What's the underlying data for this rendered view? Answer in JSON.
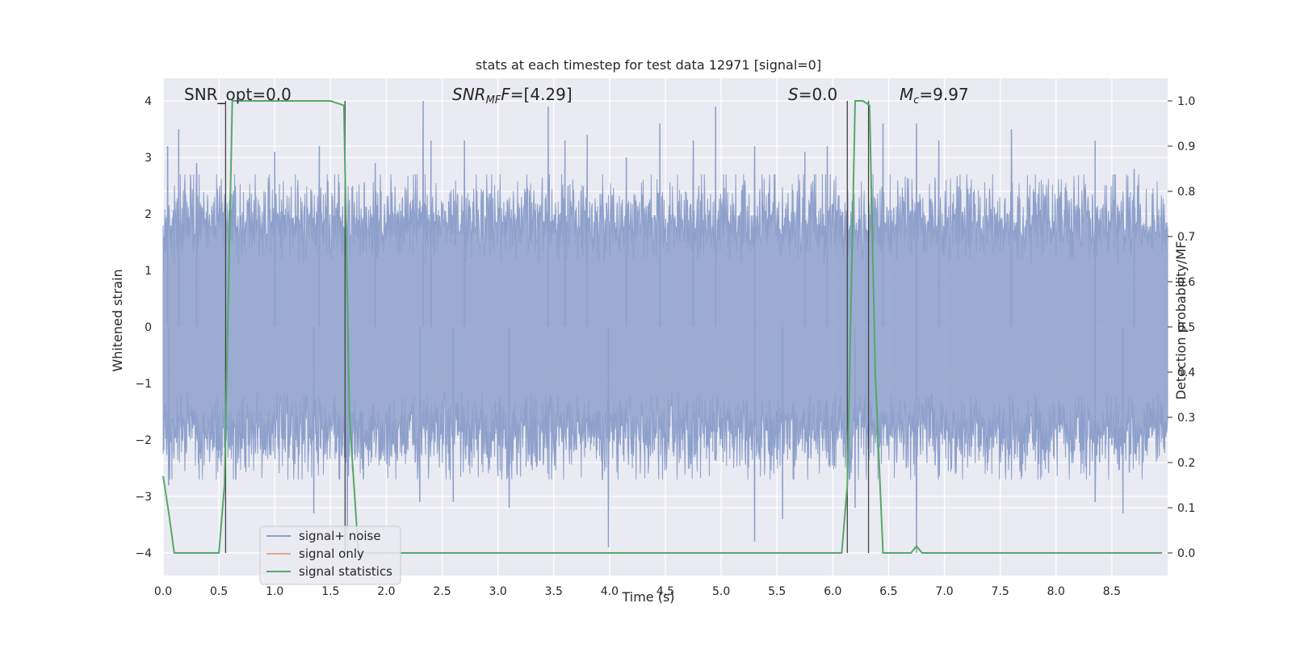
{
  "chart_data": {
    "type": "line",
    "title": "stats at each timestep for test data 12971 [signal=0]",
    "xlabel": "Time (s)",
    "ylabel_left": "Whitened strain",
    "ylabel_right": "Detection probability/MF",
    "xlim": [
      0,
      9.0
    ],
    "ylim_left": [
      -4.4,
      4.4
    ],
    "ylim_right": [
      -0.05,
      1.05
    ],
    "x_ticks": [
      0.0,
      0.5,
      1.0,
      1.5,
      2.0,
      2.5,
      3.0,
      3.5,
      4.0,
      4.5,
      5.0,
      5.5,
      6.0,
      6.5,
      7.0,
      7.5,
      8.0,
      8.5
    ],
    "x_tick_labels": [
      "0.0",
      "0.5",
      "1.0",
      "1.5",
      "2.0",
      "2.5",
      "3.0",
      "3.5",
      "4.0",
      "4.5",
      "5.0",
      "5.5",
      "6.0",
      "6.5",
      "7.0",
      "7.5",
      "8.0",
      "8.5"
    ],
    "y_left_ticks": [
      -4,
      -3,
      -2,
      -1,
      0,
      1,
      2,
      3,
      4
    ],
    "y_left_tick_labels": [
      "−4",
      "−3",
      "−2",
      "−1",
      "0",
      "1",
      "2",
      "3",
      "4"
    ],
    "y_right_ticks": [
      0.0,
      0.1,
      0.2,
      0.3,
      0.4,
      0.5,
      0.6,
      0.7,
      0.8,
      0.9,
      1.0
    ],
    "y_right_tick_labels": [
      "0.0",
      "0.1",
      "0.2",
      "0.3",
      "0.4",
      "0.5",
      "0.6",
      "0.7",
      "0.8",
      "0.9",
      "1.0"
    ],
    "grid": true,
    "legend_position": "lower-left",
    "legend": [
      {
        "label": "signal+ noise",
        "color": "#8da0cb"
      },
      {
        "label": "signal only",
        "color": "#e5a98c"
      },
      {
        "label": "signal statistics",
        "color": "#55a868"
      }
    ],
    "annotations": {
      "snr_opt": "SNR_opt=0.0",
      "snr_mf_name": "SNR",
      "snr_mf_sub": "MF",
      "snr_mf_value": "=[4.29]",
      "s_name": "S",
      "s_value": "=0.0",
      "mc_name": "M",
      "mc_sub": "c",
      "mc_value": "=9.97"
    },
    "noise": {
      "x_start": 0.0,
      "x_end": 9.0,
      "envelope_typical": 2.0,
      "peak_extremes": [
        {
          "x": 0.04,
          "y": 3.2
        },
        {
          "x": 0.14,
          "y": 3.5
        },
        {
          "x": 0.3,
          "y": 2.9
        },
        {
          "x": 1.0,
          "y": 3.1
        },
        {
          "x": 1.4,
          "y": 3.2
        },
        {
          "x": 1.9,
          "y": 2.9
        },
        {
          "x": 2.33,
          "y": 4.0
        },
        {
          "x": 2.4,
          "y": 3.3
        },
        {
          "x": 2.7,
          "y": 3.3
        },
        {
          "x": 3.45,
          "y": 3.9
        },
        {
          "x": 3.6,
          "y": 3.3
        },
        {
          "x": 3.8,
          "y": 3.4
        },
        {
          "x": 4.15,
          "y": 3.0
        },
        {
          "x": 4.45,
          "y": 3.6
        },
        {
          "x": 4.75,
          "y": 3.3
        },
        {
          "x": 4.95,
          "y": 3.9
        },
        {
          "x": 5.3,
          "y": 3.2
        },
        {
          "x": 5.75,
          "y": 3.1
        },
        {
          "x": 5.95,
          "y": 3.2
        },
        {
          "x": 6.45,
          "y": 3.6
        },
        {
          "x": 6.75,
          "y": 3.6
        },
        {
          "x": 6.95,
          "y": 3.3
        },
        {
          "x": 7.6,
          "y": 3.5
        },
        {
          "x": 8.35,
          "y": 3.3
        },
        {
          "x": 8.7,
          "y": 2.8
        },
        {
          "x": 0.05,
          "y": -2.8
        },
        {
          "x": 1.35,
          "y": -3.3
        },
        {
          "x": 1.65,
          "y": -4.0
        },
        {
          "x": 2.3,
          "y": -3.1
        },
        {
          "x": 2.6,
          "y": -3.1
        },
        {
          "x": 3.1,
          "y": -3.2
        },
        {
          "x": 3.99,
          "y": -3.9
        },
        {
          "x": 5.3,
          "y": -3.8
        },
        {
          "x": 5.55,
          "y": -3.4
        },
        {
          "x": 6.2,
          "y": -3.2
        },
        {
          "x": 6.75,
          "y": -4.0
        },
        {
          "x": 8.35,
          "y": -3.1
        },
        {
          "x": 8.6,
          "y": -3.3
        }
      ]
    },
    "signal_statistics": {
      "color": "#55a868",
      "x": [
        0.0,
        0.05,
        0.1,
        0.5,
        0.55,
        0.62,
        1.0,
        1.5,
        1.62,
        1.67,
        1.75,
        2.0,
        3.0,
        4.0,
        5.0,
        6.0,
        6.08,
        6.13,
        6.2,
        6.27,
        6.33,
        6.38,
        6.45,
        6.6,
        6.7,
        6.75,
        6.8,
        6.85,
        7.0,
        8.0,
        8.95
      ],
      "y": [
        0.17,
        0.09,
        0.0,
        0.0,
        0.15,
        1.0,
        1.0,
        1.0,
        0.99,
        0.3,
        0.0,
        0.0,
        0.0,
        0.0,
        0.0,
        0.0,
        0.0,
        0.15,
        1.0,
        1.0,
        0.99,
        0.4,
        0.0,
        0.0,
        0.0,
        0.015,
        0.0,
        0.0,
        0.0,
        0.0,
        0.0
      ]
    },
    "vertical_markers_x": [
      0.56,
      1.63,
      6.13,
      6.32
    ]
  }
}
